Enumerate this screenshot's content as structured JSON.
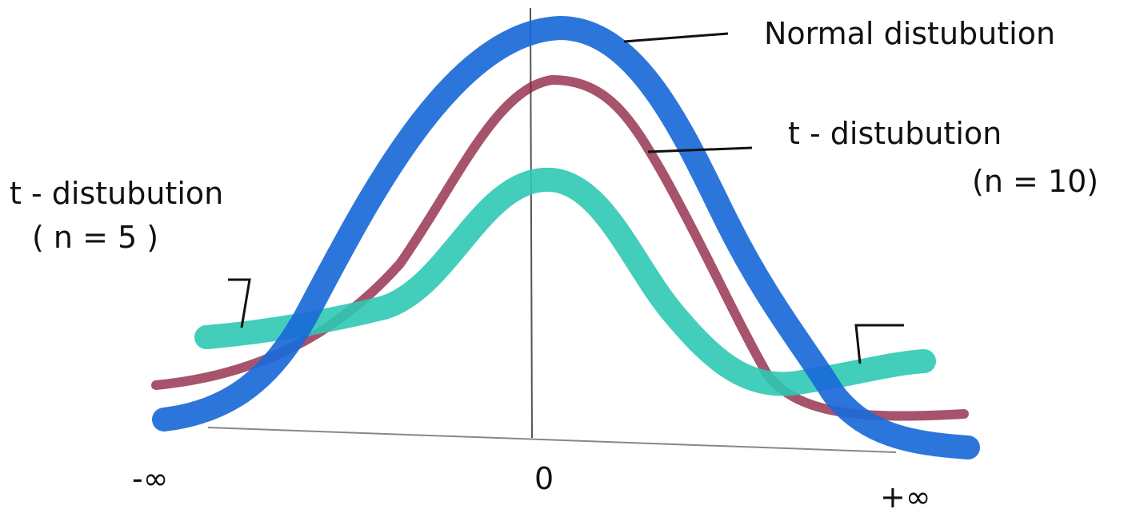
{
  "labels": {
    "normal": "Normal distubution",
    "t_n10": {
      "title": "t - distubution",
      "param": "(n = 10)"
    },
    "t_n5": {
      "title": "t - distubution",
      "param": "( n = 5 )"
    }
  },
  "axis": {
    "left": "-∞",
    "center": "0",
    "right": "+∞"
  }
}
